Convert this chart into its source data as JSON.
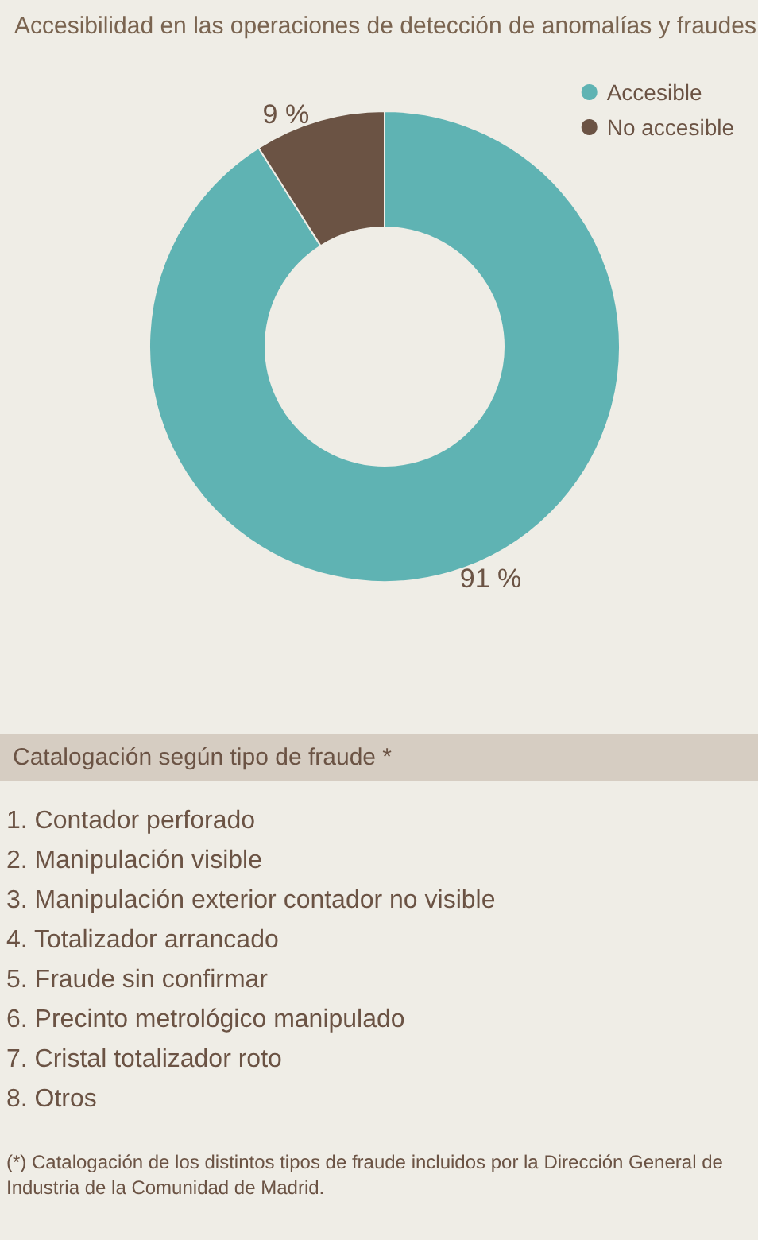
{
  "chart_data": {
    "type": "donut",
    "title": "Accesibilidad en las operaciones de detección de anomalías y fraudes",
    "categories": [
      "Accesible",
      "No accesible"
    ],
    "values": [
      91,
      9
    ],
    "colors": [
      "#5fb3b3",
      "#6b5344"
    ],
    "value_labels": [
      "91 %",
      "9 %"
    ],
    "legend": "top right",
    "annotations": [
      "Catalogación según tipo de fraude *",
      "1.  Contador perforado",
      "2.  Manipulación visible",
      "3.  Manipulación exterior contador no visible",
      "4.  Totalizador arrancado",
      "5.  Fraude sin confirmar",
      "6.  Precinto metrológico manipulado",
      "7.  Cristal totalizador roto",
      "8.  Otros",
      "(*) Catalogación de los distintos tipos de fraude incluidos por la Dirección General de Industria de la Comunidad de Madrid."
    ]
  }
}
